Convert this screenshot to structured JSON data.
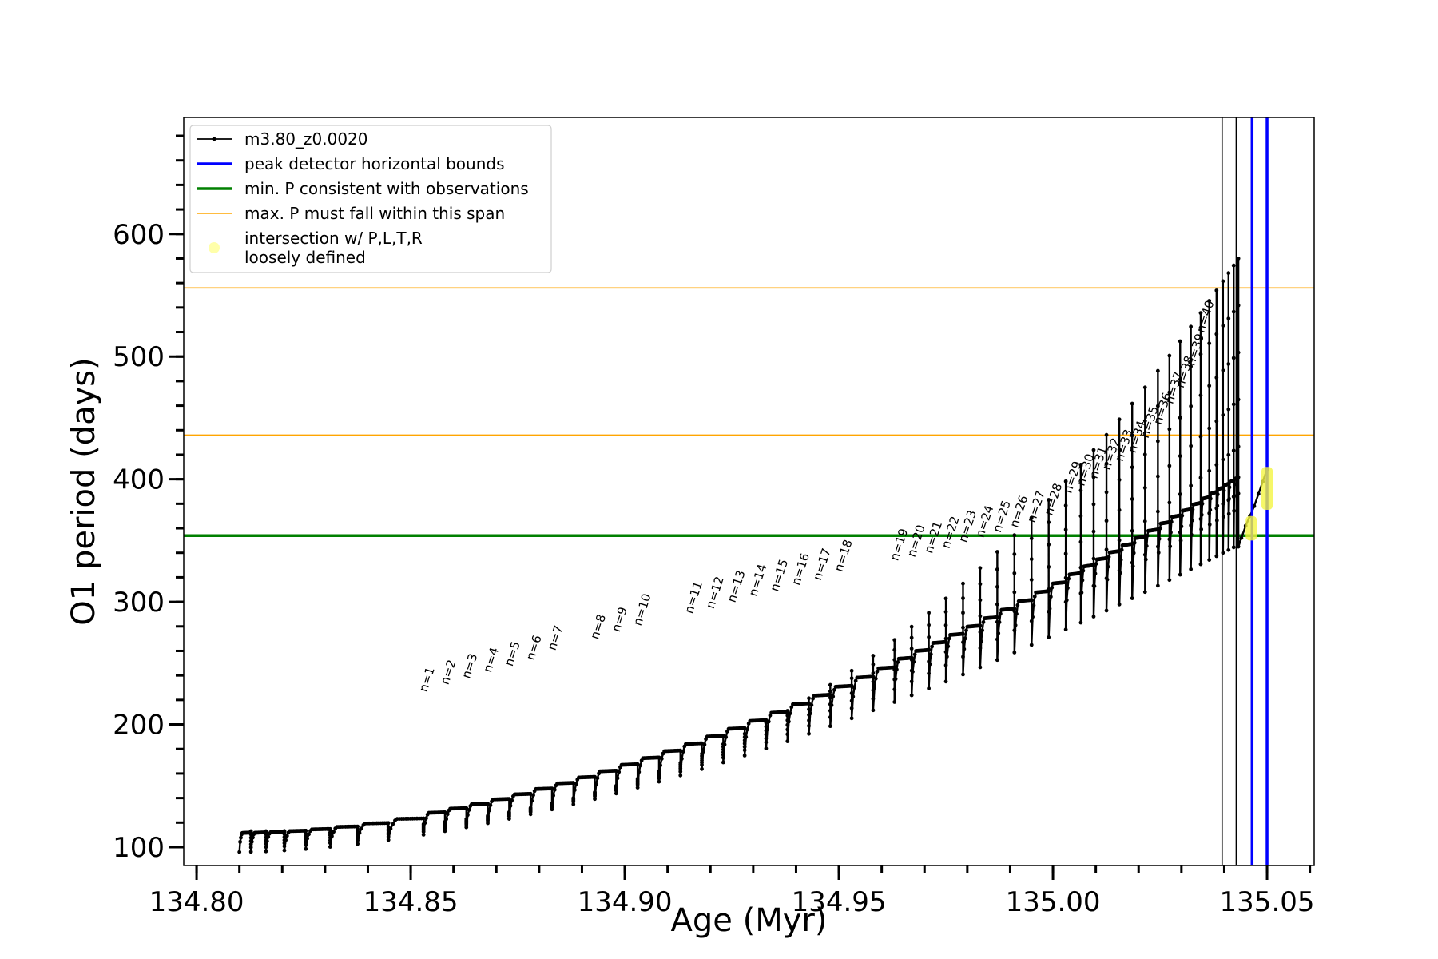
{
  "chart_data": {
    "type": "line",
    "xlabel": "Age (Myr)",
    "ylabel": "O1 period (days)",
    "xlim": [
      134.797,
      135.061
    ],
    "ylim": [
      85,
      695
    ],
    "xticks": [
      134.8,
      134.85,
      134.9,
      134.95,
      135.0,
      135.05
    ],
    "xtick_labels": [
      "134.80",
      "134.85",
      "134.90",
      "134.95",
      "135.00",
      "135.05"
    ],
    "xminor_step": 0.01,
    "yticks": [
      100,
      200,
      300,
      400,
      500,
      600
    ],
    "ytick_labels": [
      "100",
      "200",
      "300",
      "400",
      "500",
      "600"
    ],
    "yminor_step": 20,
    "grid": false,
    "legend_position": "top-left",
    "series": [
      {
        "name": "m3.80_z0.0020",
        "color": "#000000",
        "cycle_starts": [
          134.81,
          134.8127,
          134.8162,
          134.8205,
          134.8255,
          134.8312,
          134.8376,
          134.8448,
          134.853,
          134.858,
          134.863,
          134.868,
          134.873,
          134.878,
          134.883,
          134.888,
          134.893,
          134.898,
          134.903,
          134.908,
          134.913,
          134.918,
          134.923,
          134.928,
          134.933,
          134.938,
          134.943,
          134.948,
          134.953,
          134.958,
          134.963,
          134.967,
          134.971,
          134.975,
          134.979,
          134.983,
          134.987,
          134.991,
          134.995,
          134.999,
          135.003,
          135.0065,
          135.0095,
          135.0125,
          135.0155,
          135.0185,
          135.0215,
          135.0245,
          135.0272,
          135.0297,
          135.0322,
          135.0345,
          135.0365,
          135.0382,
          135.0397,
          135.041,
          135.0422,
          135.0433
        ],
        "baseline_start": 97,
        "baseline_end": 350,
        "recovery_peak_ratio": 1.15,
        "spike_top_start": 113,
        "spike_top_end": 580,
        "final_segment": {
          "x": [
            135.0433,
            135.044,
            135.045,
            135.046,
            135.047,
            135.048,
            135.049,
            135.05
          ],
          "y": [
            345,
            352,
            362,
            370,
            378,
            388,
            398,
            408
          ]
        }
      }
    ],
    "hlines": [
      {
        "name": "min. P consistent with observations",
        "y": 354,
        "color": "#008000",
        "width": 3.5
      },
      {
        "name": "max. P must fall within this span",
        "y": 436,
        "color": "#FFA500",
        "width": 1.6
      },
      {
        "name": "max. P must fall within this span",
        "y": 556,
        "color": "#FFA500",
        "width": 1.6
      }
    ],
    "vlines": [
      {
        "name": "peak detector horizontal bounds",
        "x": 135.0465,
        "color": "#0000FF",
        "width": 3.5
      },
      {
        "name": "peak detector horizontal bounds",
        "x": 135.05,
        "color": "#0000FF",
        "width": 3.5
      },
      {
        "name": "m3.80_z0.0020",
        "x": 135.0395,
        "color": "#000000",
        "width": 1.6
      },
      {
        "name": "m3.80_z0.0020",
        "x": 135.0428,
        "color": "#000000",
        "width": 1.6
      }
    ],
    "highlights": [
      {
        "name": "intersection w/ P,L,T,R loosely defined",
        "x": 135.0463,
        "y_low": 350,
        "y_high": 370
      },
      {
        "name": "intersection w/ P,L,T,R loosely defined",
        "x": 135.05,
        "y_low": 375,
        "y_high": 410
      }
    ],
    "pulse_labels": [
      {
        "text": "n=1",
        "x": 134.853,
        "y": 222
      },
      {
        "text": "n=2",
        "x": 134.858,
        "y": 228
      },
      {
        "text": "n=3",
        "x": 134.863,
        "y": 233
      },
      {
        "text": "n=4",
        "x": 134.868,
        "y": 238
      },
      {
        "text": "n=5",
        "x": 134.873,
        "y": 243
      },
      {
        "text": "n=6",
        "x": 134.878,
        "y": 248
      },
      {
        "text": "n=7",
        "x": 134.883,
        "y": 256
      },
      {
        "text": "n=8",
        "x": 134.893,
        "y": 265
      },
      {
        "text": "n=9",
        "x": 134.898,
        "y": 271
      },
      {
        "text": "n=10",
        "x": 134.903,
        "y": 276
      },
      {
        "text": "n=11",
        "x": 134.915,
        "y": 286
      },
      {
        "text": "n=12",
        "x": 134.92,
        "y": 290
      },
      {
        "text": "n=13",
        "x": 134.925,
        "y": 295
      },
      {
        "text": "n=14",
        "x": 134.93,
        "y": 300
      },
      {
        "text": "n=15",
        "x": 134.935,
        "y": 304
      },
      {
        "text": "n=16",
        "x": 134.94,
        "y": 309
      },
      {
        "text": "n=17",
        "x": 134.945,
        "y": 313
      },
      {
        "text": "n=18",
        "x": 134.95,
        "y": 320
      },
      {
        "text": "n=19",
        "x": 134.963,
        "y": 329
      },
      {
        "text": "n=20",
        "x": 134.967,
        "y": 332
      },
      {
        "text": "n=21",
        "x": 134.971,
        "y": 335
      },
      {
        "text": "n=22",
        "x": 134.975,
        "y": 339
      },
      {
        "text": "n=23",
        "x": 134.979,
        "y": 344
      },
      {
        "text": "n=24",
        "x": 134.983,
        "y": 348
      },
      {
        "text": "n=25",
        "x": 134.987,
        "y": 352
      },
      {
        "text": "n=26",
        "x": 134.991,
        "y": 356
      },
      {
        "text": "n=27",
        "x": 134.995,
        "y": 360
      },
      {
        "text": "n=28",
        "x": 134.999,
        "y": 366
      },
      {
        "text": "n=29",
        "x": 135.0035,
        "y": 384
      },
      {
        "text": "n=30",
        "x": 135.0065,
        "y": 390
      },
      {
        "text": "n=31",
        "x": 135.0095,
        "y": 396
      },
      {
        "text": "n=32",
        "x": 135.0125,
        "y": 403
      },
      {
        "text": "n=33",
        "x": 135.0155,
        "y": 410
      },
      {
        "text": "n=34",
        "x": 135.0185,
        "y": 417
      },
      {
        "text": "n=35",
        "x": 135.0215,
        "y": 429
      },
      {
        "text": "n=36",
        "x": 135.0245,
        "y": 440
      },
      {
        "text": "n=37",
        "x": 135.0272,
        "y": 457
      },
      {
        "text": "n=38",
        "x": 135.0297,
        "y": 470
      },
      {
        "text": "n=39",
        "x": 135.0322,
        "y": 488
      },
      {
        "text": "n=40",
        "x": 135.0345,
        "y": 515
      }
    ],
    "legend": [
      {
        "label": "m3.80_z0.0020",
        "kind": "line-marker",
        "color": "#000000"
      },
      {
        "label": "peak detector horizontal bounds",
        "kind": "line",
        "color": "#0000FF"
      },
      {
        "label": "min. P consistent with observations",
        "kind": "line",
        "color": "#008000"
      },
      {
        "label": "max. P must fall within this span",
        "kind": "thin-line",
        "color": "#FFA500"
      },
      {
        "label": "intersection w/ P,L,T,R",
        "label_line2": "loosely defined",
        "kind": "dot",
        "color": "#FFFFAA"
      }
    ]
  }
}
